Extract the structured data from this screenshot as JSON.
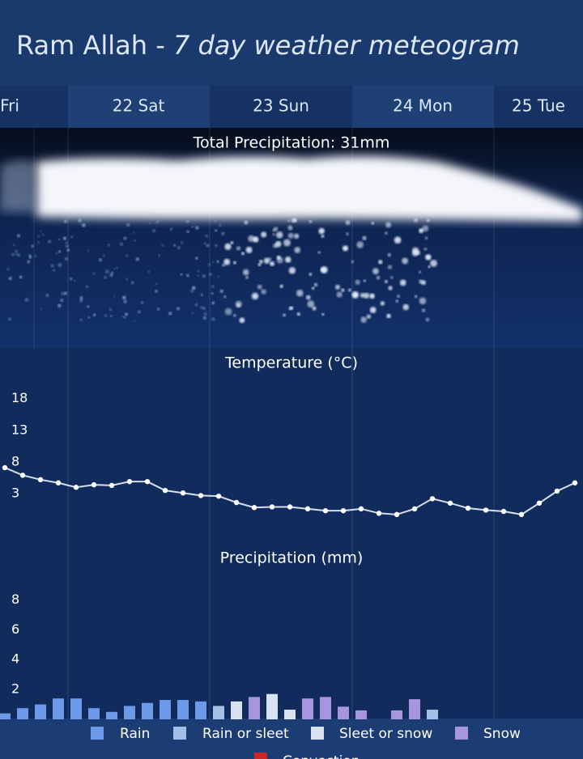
{
  "header": {
    "place": "Ram Allah",
    "separator": " - ",
    "subtitle": "7 day weather meteogram"
  },
  "days": [
    "Fri",
    "22 Sat",
    "23 Sun",
    "24 Mon",
    "25 Tue"
  ],
  "cloud_title": "Total Precipitation: 31mm",
  "legend_cut": {
    "label": "Convection",
    "color": "#c62828"
  },
  "chart_data": [
    {
      "type": "line",
      "title": "Temperature (°C)",
      "color": "#d6deec",
      "categories": [
        null,
        null,
        null,
        null,
        null,
        null,
        null,
        null,
        null,
        null,
        null,
        null,
        null,
        null,
        null,
        null,
        null,
        null,
        null,
        null,
        null,
        null,
        null,
        null,
        null,
        null,
        null,
        null,
        null,
        null,
        null,
        null,
        null
      ],
      "values": [
        7.1,
        5.9,
        5.2,
        4.7,
        4.0,
        4.4,
        4.3,
        4.9,
        4.9,
        3.5,
        3.1,
        2.7,
        2.6,
        1.6,
        0.8,
        0.9,
        0.9,
        0.6,
        0.3,
        0.3,
        0.6,
        -0.1,
        -0.3,
        0.6,
        2.2,
        1.5,
        0.7,
        0.4,
        0.2,
        -0.3,
        1.5,
        3.4,
        4.7
      ],
      "ylim": [
        -3,
        20
      ],
      "yticks": [
        3,
        8,
        13,
        18
      ],
      "grid": false
    },
    {
      "type": "bar",
      "title": "Precipitation (mm)",
      "categories": [
        null,
        null,
        null,
        null,
        null,
        null,
        null,
        null,
        null,
        null,
        null,
        null,
        null,
        null,
        null,
        null,
        null,
        null,
        null,
        null,
        null,
        null,
        null,
        null,
        null,
        null,
        null,
        null,
        null,
        null,
        null,
        null,
        null
      ],
      "series": [
        {
          "name": "Rain",
          "color": "#6b9be8",
          "values": [
            0.4,
            0.75,
            1.0,
            1.4,
            1.4,
            0.75,
            0.5,
            0.9,
            1.1,
            1.3,
            1.3,
            1.2,
            null,
            null,
            null,
            null,
            null,
            null,
            null,
            null,
            null,
            null,
            null,
            null,
            null,
            null,
            null,
            null,
            null,
            null,
            null,
            null,
            null
          ]
        },
        {
          "name": "Rain or sleet",
          "color": "#a4c0e6",
          "values": [
            null,
            null,
            null,
            null,
            null,
            null,
            null,
            null,
            null,
            null,
            null,
            null,
            0.9,
            null,
            null,
            null,
            null,
            null,
            null,
            null,
            null,
            null,
            null,
            null,
            0.65,
            null,
            null,
            null,
            null,
            null,
            null,
            null,
            null
          ]
        },
        {
          "name": "Sleet or snow",
          "color": "#d8e2f2",
          "values": [
            null,
            null,
            null,
            null,
            null,
            null,
            null,
            null,
            null,
            null,
            null,
            null,
            null,
            1.2,
            null,
            1.7,
            0.65,
            null,
            null,
            null,
            null,
            null,
            null,
            null,
            null,
            null,
            null,
            null,
            null,
            null,
            null,
            null,
            null
          ]
        },
        {
          "name": "Snow",
          "color": "#a796dd",
          "values": [
            null,
            null,
            null,
            null,
            null,
            null,
            null,
            null,
            null,
            null,
            null,
            null,
            null,
            null,
            1.5,
            null,
            null,
            1.4,
            1.5,
            0.85,
            0.6,
            null,
            0.6,
            1.35,
            null,
            null,
            null,
            null,
            null,
            null,
            null,
            null,
            null
          ]
        }
      ],
      "ylim": [
        0,
        9
      ],
      "yticks": [
        2,
        4,
        6,
        8
      ],
      "grid": false
    }
  ]
}
